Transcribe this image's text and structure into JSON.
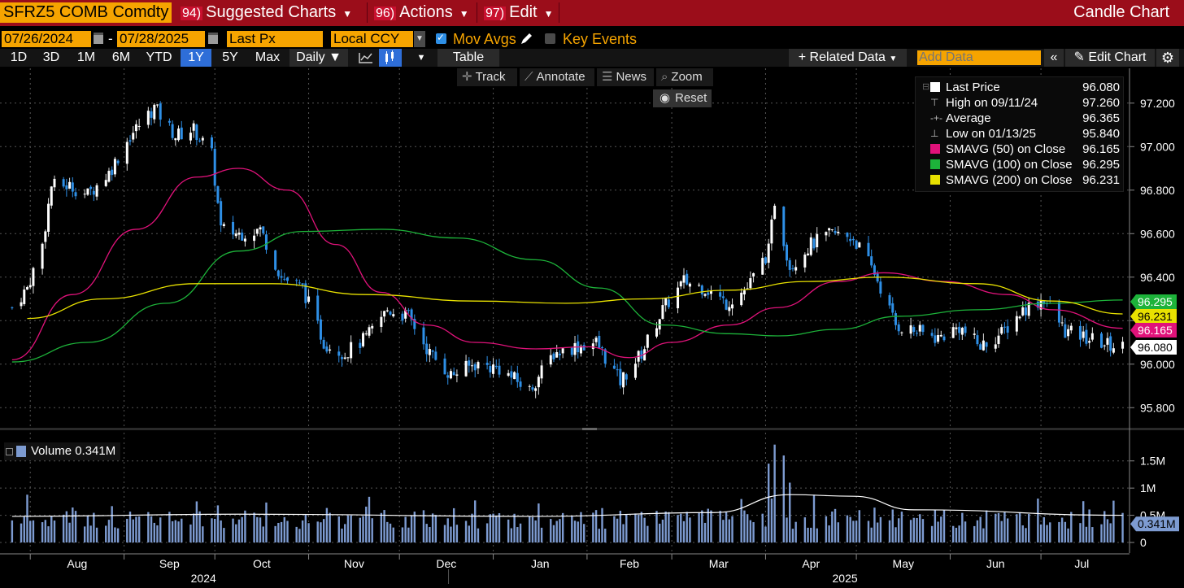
{
  "toolbar": {
    "ticker": "SFRZ5 COMB Comdty",
    "suggested": {
      "num": "94)",
      "label": "Suggested Charts"
    },
    "actions": {
      "num": "96)",
      "label": "Actions"
    },
    "edit": {
      "num": "97)",
      "label": "Edit"
    },
    "chart_type": "Candle Chart"
  },
  "settings": {
    "start_date": "07/26/2024",
    "end_date": "07/28/2025",
    "field": "Last Px",
    "currency": "Local CCY",
    "mov_avgs": "Mov Avgs",
    "key_events": "Key Events",
    "add_data_placeholder": "Add Data"
  },
  "ranges": [
    "1D",
    "3D",
    "1M",
    "6M",
    "YTD",
    "1Y",
    "5Y",
    "Max"
  ],
  "selected_range": "1Y",
  "periodicity": "Daily",
  "table_label": "Table",
  "related_data": "Related Data",
  "edit_chart": "Edit Chart",
  "tools": {
    "track": "Track",
    "annotate": "Annotate",
    "news": "News",
    "zoom": "Zoom",
    "reset": "Reset"
  },
  "legend": {
    "last_price": {
      "label": "Last Price",
      "value": "96.080"
    },
    "high": {
      "label": "High on 09/11/24",
      "value": "97.260"
    },
    "average": {
      "label": "Average",
      "value": "96.365"
    },
    "low": {
      "label": "Low on 01/13/25",
      "value": "95.840"
    },
    "sma50": {
      "label": "SMAVG (50)  on Close",
      "value": "96.165"
    },
    "sma100": {
      "label": "SMAVG (100)  on Close",
      "value": "96.295"
    },
    "sma200": {
      "label": "SMAVG (200)  on Close",
      "value": "96.231"
    }
  },
  "volume": {
    "label": "Volume 0.341M",
    "last_tag": "0.341M"
  },
  "colors": {
    "accent": "#f6a400",
    "header": "#9b0d1a",
    "sma50": "#e0127a",
    "sma100": "#1db33a",
    "sma200": "#e8e100",
    "volume": "#7d9bd1",
    "down": "#2e8fe6"
  },
  "chart_data": {
    "type": "candlestick",
    "x_range": [
      "2024-07-26",
      "2025-07-28"
    ],
    "y_ticks": [
      "95.800",
      "96.000",
      "96.200",
      "96.400",
      "96.600",
      "96.800",
      "97.000",
      "97.200"
    ],
    "ylim": [
      95.7,
      97.36
    ],
    "x_months": [
      "Aug",
      "Sep",
      "Oct",
      "Nov",
      "Dec",
      "Jan",
      "Feb",
      "Mar",
      "Apr",
      "May",
      "Jun",
      "Jul"
    ],
    "x_years": [
      "2024",
      "2025"
    ],
    "close_series": [
      [
        "2024-07-26",
        96.26
      ],
      [
        "2024-07-31",
        96.35
      ],
      [
        "2024-08-05",
        96.55
      ],
      [
        "2024-08-08",
        96.82
      ],
      [
        "2024-08-14",
        96.82
      ],
      [
        "2024-08-20",
        96.78
      ],
      [
        "2024-08-27",
        96.88
      ],
      [
        "2024-09-03",
        97.05
      ],
      [
        "2024-09-11",
        97.18
      ],
      [
        "2024-09-18",
        97.05
      ],
      [
        "2024-09-24",
        97.08
      ],
      [
        "2024-09-30",
        96.96
      ],
      [
        "2024-10-03",
        96.62
      ],
      [
        "2024-10-09",
        96.6
      ],
      [
        "2024-10-16",
        96.62
      ],
      [
        "2024-10-23",
        96.4
      ],
      [
        "2024-10-30",
        96.35
      ],
      [
        "2024-11-06",
        96.1
      ],
      [
        "2024-11-13",
        96.05
      ],
      [
        "2024-11-20",
        96.12
      ],
      [
        "2024-11-27",
        96.25
      ],
      [
        "2024-12-04",
        96.22
      ],
      [
        "2024-12-11",
        96.05
      ],
      [
        "2024-12-18",
        95.95
      ],
      [
        "2024-12-26",
        96.0
      ],
      [
        "2025-01-03",
        95.98
      ],
      [
        "2025-01-13",
        95.88
      ],
      [
        "2025-01-21",
        96.05
      ],
      [
        "2025-01-28",
        96.08
      ],
      [
        "2025-02-04",
        96.1
      ],
      [
        "2025-02-12",
        95.92
      ],
      [
        "2025-02-19",
        96.05
      ],
      [
        "2025-02-26",
        96.25
      ],
      [
        "2025-03-05",
        96.38
      ],
      [
        "2025-03-12",
        96.35
      ],
      [
        "2025-03-19",
        96.28
      ],
      [
        "2025-03-26",
        96.35
      ],
      [
        "2025-04-02",
        96.52
      ],
      [
        "2025-04-04",
        96.75
      ],
      [
        "2025-04-09",
        96.45
      ],
      [
        "2025-04-16",
        96.55
      ],
      [
        "2025-04-23",
        96.6
      ],
      [
        "2025-04-30",
        96.58
      ],
      [
        "2025-05-07",
        96.42
      ],
      [
        "2025-05-14",
        96.18
      ],
      [
        "2025-05-21",
        96.15
      ],
      [
        "2025-05-28",
        96.12
      ],
      [
        "2025-06-04",
        96.17
      ],
      [
        "2025-06-11",
        96.08
      ],
      [
        "2025-06-18",
        96.14
      ],
      [
        "2025-06-25",
        96.25
      ],
      [
        "2025-07-02",
        96.3
      ],
      [
        "2025-07-09",
        96.15
      ],
      [
        "2025-07-16",
        96.12
      ],
      [
        "2025-07-23",
        96.09
      ],
      [
        "2025-07-28",
        96.08
      ]
    ],
    "series": [
      {
        "name": "SMAVG (50)",
        "points": [
          [
            "2024-07-26",
            96.02
          ],
          [
            "2024-08-15",
            96.32
          ],
          [
            "2024-09-05",
            96.62
          ],
          [
            "2024-09-25",
            96.86
          ],
          [
            "2024-10-09",
            96.9
          ],
          [
            "2024-10-25",
            96.8
          ],
          [
            "2024-11-10",
            96.55
          ],
          [
            "2024-11-25",
            96.33
          ],
          [
            "2024-12-10",
            96.18
          ],
          [
            "2024-12-26",
            96.1
          ],
          [
            "2025-01-15",
            96.07
          ],
          [
            "2025-02-01",
            96.08
          ],
          [
            "2025-02-15",
            96.03
          ],
          [
            "2025-03-01",
            96.1
          ],
          [
            "2025-03-20",
            96.18
          ],
          [
            "2025-04-05",
            96.26
          ],
          [
            "2025-04-25",
            96.38
          ],
          [
            "2025-05-10",
            96.42
          ],
          [
            "2025-05-30",
            96.38
          ],
          [
            "2025-06-20",
            96.32
          ],
          [
            "2025-07-05",
            96.25
          ],
          [
            "2025-07-28",
            96.165
          ]
        ]
      },
      {
        "name": "SMAVG (100)",
        "points": [
          [
            "2024-07-26",
            96.01
          ],
          [
            "2024-08-20",
            96.1
          ],
          [
            "2024-09-15",
            96.28
          ],
          [
            "2024-10-09",
            96.52
          ],
          [
            "2024-10-30",
            96.61
          ],
          [
            "2024-11-25",
            96.62
          ],
          [
            "2024-12-20",
            96.58
          ],
          [
            "2025-01-15",
            96.48
          ],
          [
            "2025-02-05",
            96.35
          ],
          [
            "2025-02-26",
            96.18
          ],
          [
            "2025-03-20",
            96.14
          ],
          [
            "2025-04-05",
            96.13
          ],
          [
            "2025-04-25",
            96.16
          ],
          [
            "2025-05-15",
            96.22
          ],
          [
            "2025-06-10",
            96.25
          ],
          [
            "2025-07-05",
            96.28
          ],
          [
            "2025-07-28",
            96.295
          ]
        ]
      },
      {
        "name": "SMAVG (200)",
        "points": [
          [
            "2024-07-31",
            96.21
          ],
          [
            "2024-08-25",
            96.3
          ],
          [
            "2024-09-25",
            96.37
          ],
          [
            "2024-10-20",
            96.37
          ],
          [
            "2024-11-20",
            96.32
          ],
          [
            "2024-12-26",
            96.29
          ],
          [
            "2025-01-25",
            96.28
          ],
          [
            "2025-02-20",
            96.3
          ],
          [
            "2025-03-20",
            96.34
          ],
          [
            "2025-04-15",
            96.38
          ],
          [
            "2025-05-10",
            96.4
          ],
          [
            "2025-06-10",
            96.37
          ],
          [
            "2025-07-05",
            96.29
          ],
          [
            "2025-07-28",
            96.231
          ]
        ]
      }
    ],
    "volume_ticks": [
      "0",
      "0.5M",
      "1M",
      "1.5M"
    ],
    "volume_ylim": [
      0,
      1.9
    ],
    "volume_spikes": [
      [
        "2025-04-02",
        1.45
      ],
      [
        "2025-04-04",
        1.8
      ],
      [
        "2025-04-07",
        1.6
      ],
      [
        "2025-04-09",
        1.1
      ]
    ],
    "volume_average": [
      [
        "2024-07-26",
        0.48
      ],
      [
        "2024-10-09",
        0.52
      ],
      [
        "2025-01-15",
        0.48
      ],
      [
        "2025-03-15",
        0.55
      ],
      [
        "2025-04-09",
        0.88
      ],
      [
        "2025-04-30",
        0.85
      ],
      [
        "2025-05-20",
        0.6
      ],
      [
        "2025-07-28",
        0.5
      ]
    ],
    "last_tags": [
      {
        "label": "96.295",
        "value": 96.295,
        "color": "#1db33a"
      },
      {
        "label": "96.231",
        "value": 96.231,
        "color": "#e8e100"
      },
      {
        "label": "96.165",
        "value": 96.165,
        "color": "#e0127a"
      },
      {
        "label": "96.080",
        "value": 96.08,
        "color": "#ffffff"
      }
    ]
  }
}
